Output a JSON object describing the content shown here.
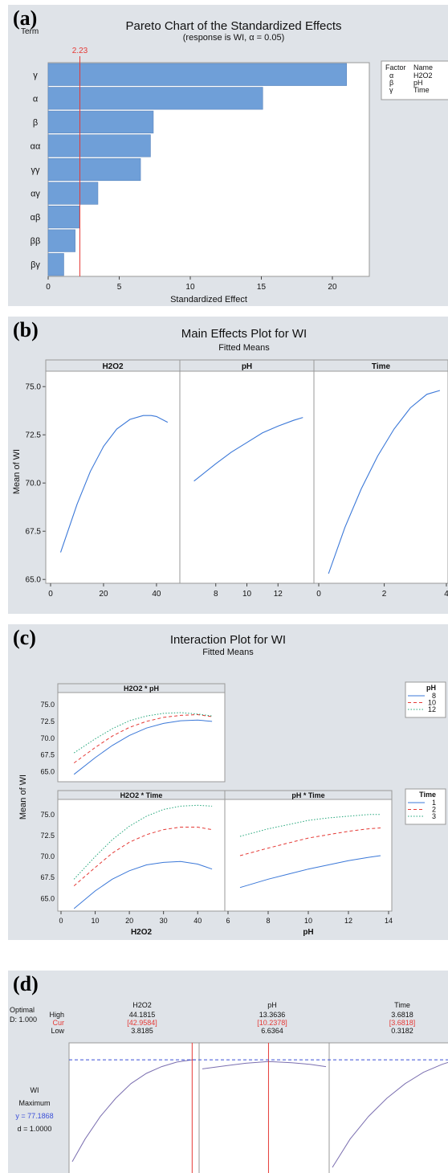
{
  "chart_data": [
    {
      "type": "bar",
      "panel_label": "(a)",
      "title": "Pareto Chart of the Standardized Effects",
      "subtitle": "(response is WI, α = 0.05)",
      "ylabel": "Term",
      "xlabel": "Standardized Effect",
      "orientation": "horizontal",
      "categories": [
        "γ",
        "α",
        "β",
        "αα",
        "γγ",
        "αγ",
        "αβ",
        "ββ",
        "βγ"
      ],
      "values": [
        21.0,
        15.1,
        7.4,
        7.2,
        6.5,
        3.5,
        2.2,
        1.9,
        1.1
      ],
      "reference_value": 2.23,
      "reference_label": "2.23",
      "xlim": [
        0,
        22.6
      ],
      "xticks": [
        0,
        5,
        10,
        15,
        20
      ],
      "bar_color": "#6f9fd8",
      "ref_color": "#e53935",
      "legend": {
        "header": [
          "Factor",
          "Name"
        ],
        "rows": [
          [
            "α",
            "H2O2"
          ],
          [
            "β",
            "pH"
          ],
          [
            "γ",
            "Time"
          ]
        ]
      }
    },
    {
      "type": "line",
      "panel_label": "(b)",
      "title": "Main Effects Plot for WI",
      "subtitle": "Fitted Means",
      "ylabel": "Mean of WI",
      "ylim": [
        64.8,
        75.8
      ],
      "yticks": [
        65.0,
        67.5,
        70.0,
        72.5,
        75.0
      ],
      "line_color": "#3b78d8",
      "panels": [
        {
          "name": "H2O2",
          "xlim": [
            0,
            47
          ],
          "xticks": [
            0,
            20,
            40
          ],
          "x": [
            3.8,
            10,
            15,
            20,
            25,
            30,
            35,
            38,
            40,
            44.2
          ],
          "y": [
            66.4,
            68.9,
            70.6,
            71.9,
            72.8,
            73.3,
            73.5,
            73.5,
            73.45,
            73.15
          ]
        },
        {
          "name": "pH",
          "xlim": [
            6,
            14
          ],
          "xticks": [
            8,
            10,
            12
          ],
          "x": [
            6.6,
            8,
            9,
            10,
            11,
            12,
            13,
            13.6
          ],
          "y": [
            70.1,
            71.0,
            71.6,
            72.1,
            72.6,
            72.95,
            73.25,
            73.4
          ]
        },
        {
          "name": "Time",
          "xlim": [
            0,
            3.8
          ],
          "xticks": [
            0,
            2,
            4
          ],
          "x": [
            0.3,
            0.8,
            1.3,
            1.8,
            2.3,
            2.8,
            3.3,
            3.7
          ],
          "y": [
            65.3,
            67.7,
            69.7,
            71.4,
            72.8,
            73.9,
            74.6,
            74.8
          ]
        }
      ]
    },
    {
      "type": "line",
      "panel_label": "(c)",
      "title": "Interaction Plot for WI",
      "subtitle": "Fitted Means",
      "ylabel": "Mean of WI",
      "ylim": [
        63.5,
        76.8
      ],
      "yticks": [
        65.0,
        67.5,
        70.0,
        72.5,
        75.0
      ],
      "colors": [
        "#3b78d8",
        "#e53935",
        "#22a67a"
      ],
      "subplots": [
        {
          "name": "H2O2 * pH",
          "x": [
            3.8,
            10,
            15,
            20,
            25,
            30,
            35,
            40,
            44.2
          ],
          "series": [
            {
              "name": "8",
              "y": [
                64.6,
                67.1,
                68.9,
                70.4,
                71.5,
                72.2,
                72.6,
                72.7,
                72.5
              ]
            },
            {
              "name": "10",
              "y": [
                66.3,
                68.6,
                70.3,
                71.6,
                72.5,
                73.1,
                73.4,
                73.5,
                73.2
              ]
            },
            {
              "name": "12",
              "y": [
                67.8,
                69.9,
                71.4,
                72.6,
                73.3,
                73.7,
                73.8,
                73.6,
                73.3
              ]
            }
          ]
        },
        {
          "name": "H2O2 * Time",
          "x": [
            3.8,
            10,
            15,
            20,
            25,
            30,
            35,
            40,
            44.2
          ],
          "series": [
            {
              "name": "1",
              "y": [
                63.8,
                65.9,
                67.3,
                68.3,
                69.0,
                69.3,
                69.4,
                69.1,
                68.5
              ]
            },
            {
              "name": "2",
              "y": [
                66.5,
                68.7,
                70.4,
                71.7,
                72.6,
                73.2,
                73.5,
                73.5,
                73.2
              ]
            },
            {
              "name": "3",
              "y": [
                67.3,
                70.0,
                72.0,
                73.6,
                74.8,
                75.6,
                76.0,
                76.1,
                76.0
              ]
            }
          ]
        },
        {
          "name": "pH * Time",
          "x": [
            6.6,
            8,
            9,
            10,
            11,
            12,
            13,
            13.6
          ],
          "series": [
            {
              "name": "1",
              "y": [
                66.3,
                67.3,
                67.9,
                68.5,
                69.0,
                69.5,
                69.9,
                70.1
              ]
            },
            {
              "name": "2",
              "y": [
                70.1,
                71.0,
                71.6,
                72.2,
                72.6,
                73.0,
                73.3,
                73.4
              ]
            },
            {
              "name": "3",
              "y": [
                72.4,
                73.3,
                73.8,
                74.3,
                74.6,
                74.8,
                75.0,
                75.0
              ]
            }
          ]
        }
      ],
      "h2o2_axis": {
        "xlabel": "H2O2",
        "xlim": [
          0,
          47
        ],
        "xticks": [
          0,
          10,
          20,
          30,
          40
        ]
      },
      "ph_axis": {
        "xlabel": "pH",
        "xlim": [
          6,
          14
        ],
        "xticks": [
          6,
          8,
          10,
          12,
          14
        ]
      },
      "legends": [
        {
          "title": "pH",
          "items": [
            "8",
            "10",
            "12"
          ]
        },
        {
          "title": "Time",
          "items": [
            "1",
            "2",
            "3"
          ]
        }
      ]
    },
    {
      "type": "line",
      "panel_label": "(d)",
      "optimal_label": "Optimal",
      "d_label": "D: 1.000",
      "row_labels": [
        "High",
        "Cur",
        "Low"
      ],
      "response": {
        "name": "WI",
        "goal": "Maximum",
        "y_text": "y = 77.1868",
        "d_text": "d = 1.0000"
      },
      "factors": [
        {
          "name": "H2O2",
          "high": "44.1815",
          "cur": "[42.9584]",
          "low": "3.8185",
          "xlim": [
            3.8185,
            44.1815
          ],
          "current": 42.9584,
          "x": [
            3.8185,
            8,
            13,
            18,
            23,
            28,
            33,
            38,
            42.9584,
            44.1815
          ],
          "y": [
            0.1,
            0.3,
            0.5,
            0.66,
            0.79,
            0.88,
            0.94,
            0.98,
            1.0,
            1.0
          ]
        },
        {
          "name": "pH",
          "high": "13.3636",
          "cur": "[10.2378]",
          "low": "6.6364",
          "xlim": [
            6.6364,
            13.3636
          ],
          "current": 10.2378,
          "x": [
            6.6364,
            8,
            9,
            10.2378,
            11.5,
            12.5,
            13.3636
          ],
          "y": [
            0.92,
            0.95,
            0.97,
            0.985,
            0.975,
            0.96,
            0.94
          ]
        },
        {
          "name": "Time",
          "high": "3.6818",
          "cur": "[3.6818]",
          "low": "0.3182",
          "xlim": [
            0.3182,
            3.6818
          ],
          "current": 3.6818,
          "x": [
            0.3182,
            0.8,
            1.3,
            1.8,
            2.3,
            2.8,
            3.3,
            3.6818
          ],
          "y": [
            0.05,
            0.3,
            0.5,
            0.66,
            0.79,
            0.89,
            0.96,
            1.0
          ]
        }
      ],
      "colors": {
        "curve": "#7b6fb0",
        "current": "#e53935",
        "target": "#3b4fd8"
      }
    }
  ]
}
